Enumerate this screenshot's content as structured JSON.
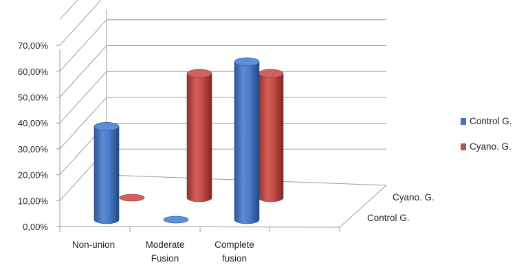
{
  "chart_data": {
    "type": "bar",
    "variant": "3d-cylinder",
    "title": "",
    "xlabel": "",
    "ylabel": "",
    "categories": [
      "Non-union",
      "Moderate Fusion",
      "Complete fusion"
    ],
    "category_lines": [
      [
        "Non-union"
      ],
      [
        "Moderate",
        "Fusion"
      ],
      [
        "Complete",
        "fusion"
      ]
    ],
    "series": [
      {
        "name": "Control G.",
        "values": [
          36,
          0,
          61
        ],
        "color": "#4472C4"
      },
      {
        "name": "Cyano. G.",
        "values": [
          0,
          48,
          48
        ],
        "color": "#C0504D"
      }
    ],
    "depth_labels": [
      "Cyano. G.",
      "Control G."
    ],
    "ylim": [
      0,
      80
    ],
    "yticks": [
      0,
      10,
      20,
      30,
      40,
      50,
      60,
      70
    ],
    "ytick_labels": [
      "0,00%",
      "10,00%",
      "20,00%",
      "30,00%",
      "40,00%",
      "50,00%",
      "60,00%",
      "70,00%"
    ],
    "grid": true,
    "legend_position": "right"
  }
}
